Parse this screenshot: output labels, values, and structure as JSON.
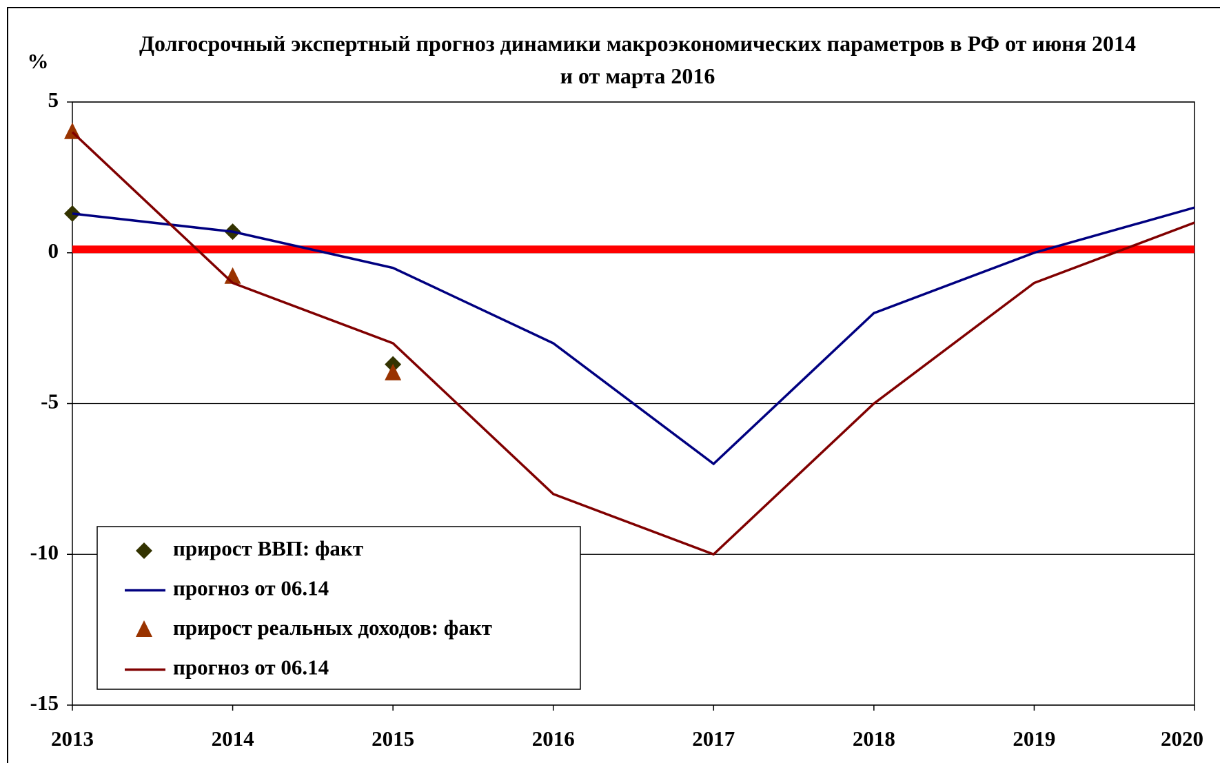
{
  "chart_data": {
    "type": "line",
    "title": "Долгосрочный экспертный прогноз динамики макроэкономических параметров в РФ от июня 2014 и от марта 2016",
    "y_label": "%",
    "x": [
      2013,
      2014,
      2015,
      2016,
      2017,
      2018,
      2019,
      2020
    ],
    "xlim": [
      2013,
      2020
    ],
    "xticks": [
      2013,
      2014,
      2015,
      2016,
      2017,
      2018,
      2019,
      2020
    ],
    "ylim": [
      -15,
      5
    ],
    "yticks": [
      -15,
      -10,
      -5,
      0,
      5
    ],
    "grid": true,
    "legend": "lower left",
    "reference_line": {
      "value": 0,
      "color": "#ff0000"
    },
    "series": [
      {
        "name": "прирост ВВП: факт",
        "color": "#333300",
        "marker": "diamond",
        "values": [
          1.3,
          0.7,
          -3.7,
          null,
          null,
          null,
          null,
          null
        ]
      },
      {
        "name": "прогноз от 06.14",
        "color": "#000080",
        "marker": "none",
        "values": [
          1.3,
          0.7,
          -0.5,
          -3,
          -7,
          -2,
          0,
          1.5
        ]
      },
      {
        "name": "прирост реальных доходов: факт",
        "color": "#993300",
        "marker": "triangle",
        "values": [
          4,
          -0.8,
          -4,
          null,
          null,
          null,
          null,
          null
        ]
      },
      {
        "name": "прогноз от 06.14",
        "color": "#800000",
        "marker": "none",
        "values": [
          4,
          -1,
          -3,
          -8,
          -10,
          -5,
          -1,
          1
        ]
      }
    ]
  }
}
